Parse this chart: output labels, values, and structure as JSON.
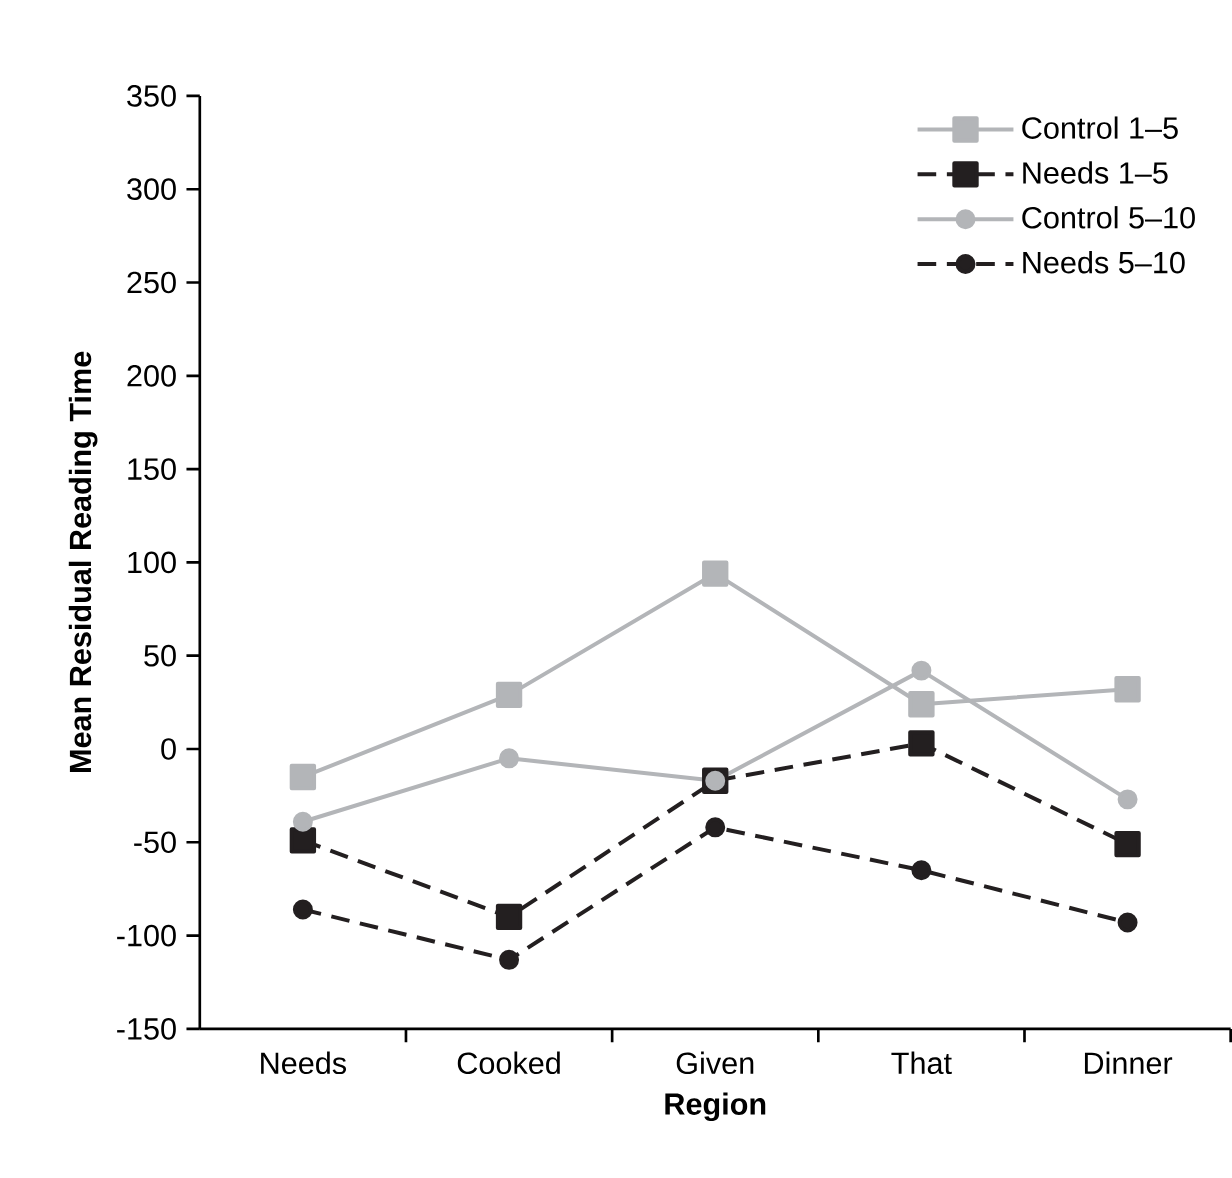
{
  "chart_data": {
    "type": "line",
    "xlabel": "Region",
    "ylabel": "Mean Residual Reading Time",
    "categories": [
      "Needs",
      "Cooked",
      "Given",
      "That",
      "Dinner"
    ],
    "series": [
      {
        "name": "Control 1–5",
        "color": "#b3b5b8",
        "marker": "square",
        "line_style": "solid",
        "values": [
          -15,
          29,
          94,
          24,
          32
        ]
      },
      {
        "name": "Needs 1–5",
        "color": "#231f20",
        "marker": "square",
        "line_style": "dashed",
        "values": [
          -49,
          -90,
          -17,
          3,
          -51
        ]
      },
      {
        "name": "Control 5–10",
        "color": "#b3b5b8",
        "marker": "circle",
        "line_style": "solid",
        "values": [
          -39,
          -5,
          -17,
          42,
          -27
        ]
      },
      {
        "name": "Needs 5–10",
        "color": "#231f20",
        "marker": "circle",
        "line_style": "dashed",
        "values": [
          -86,
          -113,
          -42,
          -65,
          -93
        ]
      }
    ],
    "ylim": [
      -150,
      350
    ],
    "yticks": [
      -150,
      -100,
      -50,
      0,
      50,
      100,
      150,
      200,
      250,
      300,
      350
    ],
    "legend": "top right",
    "grid": false
  }
}
